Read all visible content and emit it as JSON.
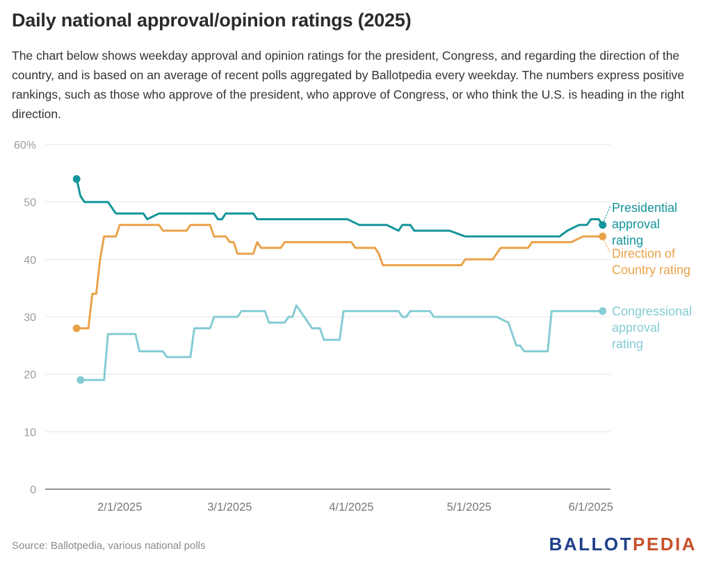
{
  "title": "Daily national approval/opinion ratings (2025)",
  "subtitle": "The chart below shows weekday approval and opinion ratings for the president, Congress, and regarding the direction of the country, and is based on an average of recent polls aggregated by Ballotpedia every weekday. The numbers express positive rankings, such as those who approve of the president, who approve of Congress, or who think the U.S. is heading in the right direction.",
  "source": "Source: Ballotpedia, various national polls",
  "logo": {
    "part1": "BALLOT",
    "part2": "PEDIA",
    "color1": "#1f3f88",
    "color2": "#c8502a"
  },
  "chart_data": {
    "type": "line",
    "x_type": "date",
    "ylim": [
      0,
      60
    ],
    "y_ticks": [
      0,
      10,
      20,
      30,
      40,
      50,
      60
    ],
    "y_tick_labels": [
      "0",
      "10",
      "20",
      "30",
      "40",
      "50",
      "60%"
    ],
    "x_ticks": [
      "2025-02-01",
      "2025-03-01",
      "2025-04-01",
      "2025-05-01",
      "2025-06-01"
    ],
    "x_tick_labels": [
      "2/1/2025",
      "3/1/2025",
      "4/1/2025",
      "5/1/2025",
      "6/1/2025"
    ],
    "grid": true,
    "legend": "inline labels at line ends (right)",
    "series": [
      {
        "name": "Presidential approval rating",
        "color": "#13959a",
        "points": [
          [
            "2025-01-21",
            54
          ],
          [
            "2025-01-22",
            51
          ],
          [
            "2025-01-23",
            50
          ],
          [
            "2025-01-29",
            50
          ],
          [
            "2025-01-31",
            48
          ],
          [
            "2025-02-07",
            48
          ],
          [
            "2025-02-08",
            47
          ],
          [
            "2025-02-11",
            48
          ],
          [
            "2025-02-25",
            48
          ],
          [
            "2025-02-26",
            47
          ],
          [
            "2025-02-27",
            47
          ],
          [
            "2025-02-28",
            48
          ],
          [
            "2025-03-07",
            48
          ],
          [
            "2025-03-08",
            47
          ],
          [
            "2025-03-31",
            47
          ],
          [
            "2025-04-03",
            46
          ],
          [
            "2025-04-10",
            46
          ],
          [
            "2025-04-13",
            45
          ],
          [
            "2025-04-14",
            46
          ],
          [
            "2025-04-16",
            46
          ],
          [
            "2025-04-17",
            45
          ],
          [
            "2025-04-26",
            45
          ],
          [
            "2025-04-30",
            44
          ],
          [
            "2025-05-24",
            44
          ],
          [
            "2025-05-26",
            45
          ],
          [
            "2025-05-29",
            46
          ],
          [
            "2025-05-31",
            46
          ],
          [
            "2025-06-01",
            47
          ],
          [
            "2025-06-03",
            47
          ],
          [
            "2025-06-04",
            46
          ]
        ]
      },
      {
        "name": "Direction of Country rating",
        "color": "#eaa24a",
        "points": [
          [
            "2025-01-21",
            28
          ],
          [
            "2025-01-24",
            28
          ],
          [
            "2025-01-25",
            34
          ],
          [
            "2025-01-26",
            34
          ],
          [
            "2025-01-27",
            40
          ],
          [
            "2025-01-28",
            44
          ],
          [
            "2025-01-31",
            44
          ],
          [
            "2025-02-01",
            46
          ],
          [
            "2025-02-11",
            46
          ],
          [
            "2025-02-12",
            45
          ],
          [
            "2025-02-18",
            45
          ],
          [
            "2025-02-19",
            46
          ],
          [
            "2025-02-24",
            46
          ],
          [
            "2025-02-25",
            44
          ],
          [
            "2025-02-28",
            44
          ],
          [
            "2025-03-01",
            43
          ],
          [
            "2025-03-02",
            43
          ],
          [
            "2025-03-03",
            41
          ],
          [
            "2025-03-07",
            41
          ],
          [
            "2025-03-08",
            43
          ],
          [
            "2025-03-09",
            42
          ],
          [
            "2025-03-14",
            42
          ],
          [
            "2025-03-15",
            43
          ],
          [
            "2025-04-01",
            43
          ],
          [
            "2025-04-02",
            42
          ],
          [
            "2025-04-07",
            42
          ],
          [
            "2025-04-08",
            41
          ],
          [
            "2025-04-09",
            39
          ],
          [
            "2025-04-29",
            39
          ],
          [
            "2025-04-30",
            40
          ],
          [
            "2025-05-07",
            40
          ],
          [
            "2025-05-09",
            42
          ],
          [
            "2025-05-16",
            42
          ],
          [
            "2025-05-17",
            43
          ],
          [
            "2025-05-27",
            43
          ],
          [
            "2025-05-30",
            44
          ],
          [
            "2025-06-04",
            44
          ]
        ]
      },
      {
        "name": "Congressional approval rating",
        "color": "#85ccd4",
        "points": [
          [
            "2025-01-22",
            19
          ],
          [
            "2025-01-28",
            19
          ],
          [
            "2025-01-29",
            27
          ],
          [
            "2025-02-05",
            27
          ],
          [
            "2025-02-06",
            24
          ],
          [
            "2025-02-12",
            24
          ],
          [
            "2025-02-13",
            23
          ],
          [
            "2025-02-19",
            23
          ],
          [
            "2025-02-20",
            28
          ],
          [
            "2025-02-24",
            28
          ],
          [
            "2025-02-25",
            30
          ],
          [
            "2025-03-03",
            30
          ],
          [
            "2025-03-04",
            31
          ],
          [
            "2025-03-10",
            31
          ],
          [
            "2025-03-11",
            29
          ],
          [
            "2025-03-15",
            29
          ],
          [
            "2025-03-16",
            30
          ],
          [
            "2025-03-17",
            30
          ],
          [
            "2025-03-18",
            32
          ],
          [
            "2025-03-22",
            28
          ],
          [
            "2025-03-24",
            28
          ],
          [
            "2025-03-25",
            26
          ],
          [
            "2025-03-29",
            26
          ],
          [
            "2025-03-30",
            31
          ],
          [
            "2025-04-13",
            31
          ],
          [
            "2025-04-14",
            30
          ],
          [
            "2025-04-15",
            30
          ],
          [
            "2025-04-16",
            31
          ],
          [
            "2025-04-21",
            31
          ],
          [
            "2025-04-22",
            30
          ],
          [
            "2025-05-07",
            30
          ],
          [
            "2025-05-08",
            30
          ],
          [
            "2025-05-11",
            29
          ],
          [
            "2025-05-13",
            25
          ],
          [
            "2025-05-14",
            25
          ],
          [
            "2025-05-15",
            24
          ],
          [
            "2025-05-21",
            24
          ],
          [
            "2025-05-22",
            31
          ],
          [
            "2025-06-04",
            31
          ]
        ]
      }
    ]
  }
}
